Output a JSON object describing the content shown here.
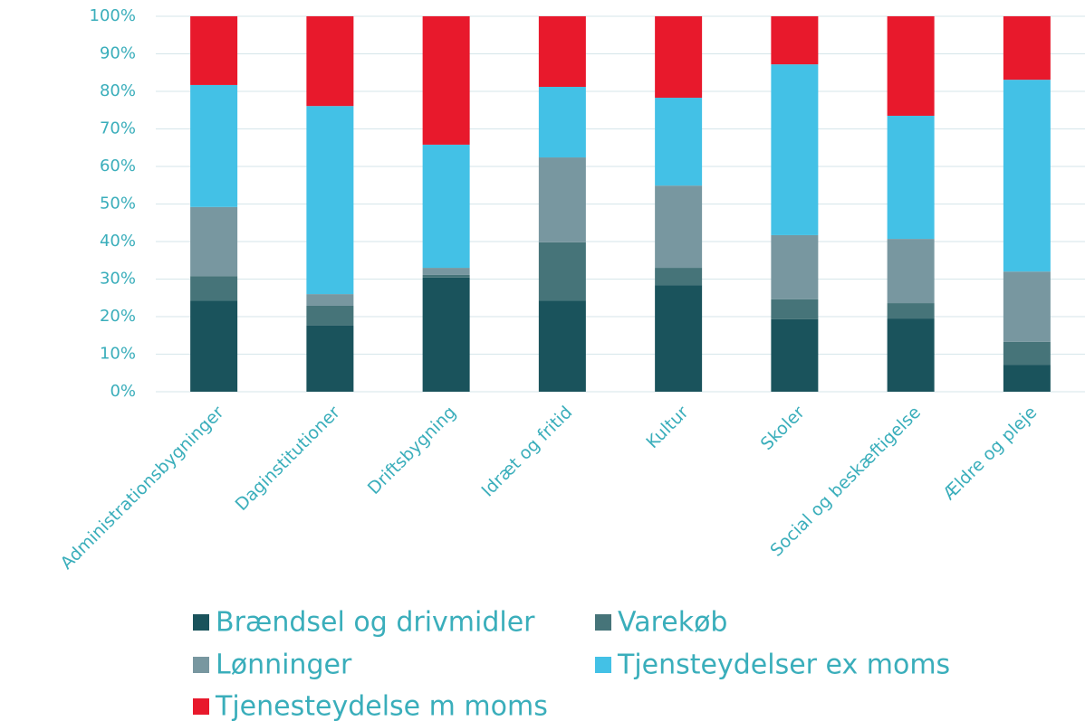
{
  "chart_data": {
    "type": "stacked_bar",
    "categories": [
      "Administrationsbygninger",
      "Daginstitutioner",
      "Driftsbygning",
      "Idræt og fritid",
      "Kultur",
      "Skoler",
      "Social og beskæftigelse",
      "Ældre og pleje"
    ],
    "series": [
      {
        "name": "Brændsel og drivmidler",
        "color": "#1a535c",
        "values": [
          24.3,
          17.6,
          30.4,
          24.3,
          28.4,
          19.3,
          19.5,
          7.2
        ]
      },
      {
        "name": "Varekøb",
        "color": "#467479",
        "values": [
          6.5,
          5.3,
          0.7,
          15.5,
          4.6,
          5.3,
          4.1,
          6.1
        ]
      },
      {
        "name": "Lønninger",
        "color": "#7897a0",
        "values": [
          18.4,
          3.1,
          1.9,
          22.6,
          21.9,
          17.1,
          17.1,
          18.7
        ]
      },
      {
        "name": "Tjensteydelser ex moms",
        "color": "#43c1e6",
        "values": [
          32.5,
          50.1,
          32.8,
          18.8,
          23.4,
          45.5,
          32.8,
          51.1
        ]
      },
      {
        "name": "Tjenesteydelse m moms",
        "color": "#e8192c",
        "values": [
          18.3,
          23.9,
          34.2,
          18.8,
          21.7,
          12.8,
          26.5,
          16.9
        ]
      }
    ],
    "ylim": [
      0,
      100
    ],
    "yticks": [
      {
        "value": 0,
        "label": "0%"
      },
      {
        "value": 10,
        "label": "10%"
      },
      {
        "value": 20,
        "label": "20%"
      },
      {
        "value": 30,
        "label": "30%"
      },
      {
        "value": 40,
        "label": "40%"
      },
      {
        "value": 50,
        "label": "50%"
      },
      {
        "value": 60,
        "label": "60%"
      },
      {
        "value": 70,
        "label": "70%"
      },
      {
        "value": 80,
        "label": "80%"
      },
      {
        "value": 90,
        "label": "90%"
      },
      {
        "value": 100,
        "label": "100%"
      }
    ],
    "grid": true
  }
}
